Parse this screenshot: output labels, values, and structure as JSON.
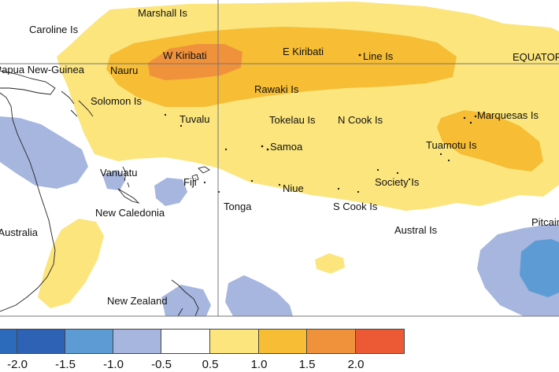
{
  "labels": {
    "marshall": "Marshall Is",
    "caroline": "Caroline Is",
    "png": "Papua New-Guinea",
    "nauru": "Nauru",
    "w_kiribati": "W Kiribati",
    "e_kiribati": "E Kiribati",
    "line": "Line Is",
    "equator": "EQUATOR",
    "solomon": "Solomon Is",
    "rawaki": "Rawaki Is",
    "tuvalu": "Tuvalu",
    "tokelau": "Tokelau Is",
    "n_cook": "N Cook Is",
    "marquesas": "Marquesas Is",
    "samoa": "Samoa",
    "tuamotu": "Tuamotu Is",
    "vanuatu": "Vanuatu",
    "fiji": "Fiji",
    "niue": "Niue",
    "society": "Society Is",
    "new_caledonia": "New Caledonia",
    "tonga": "Tonga",
    "s_cook": "S Cook Is",
    "australia": "Australia",
    "austral": "Austral Is",
    "pitcairn": "Pitcairn",
    "new_zealand": "New Zealand"
  },
  "legend": {
    "ticks": [
      "-2.0",
      "-1.5",
      "-1.0",
      "-0.5",
      "0.5",
      "1.0",
      "1.5",
      "2.0"
    ],
    "colors": [
      "#2c6bbb",
      "#2e62b4",
      "#5d9bd5",
      "#a6b6de",
      "#ffffff",
      "#fbe57c",
      "#f6bd35",
      "#f0923c",
      "#ec5a35"
    ]
  }
}
